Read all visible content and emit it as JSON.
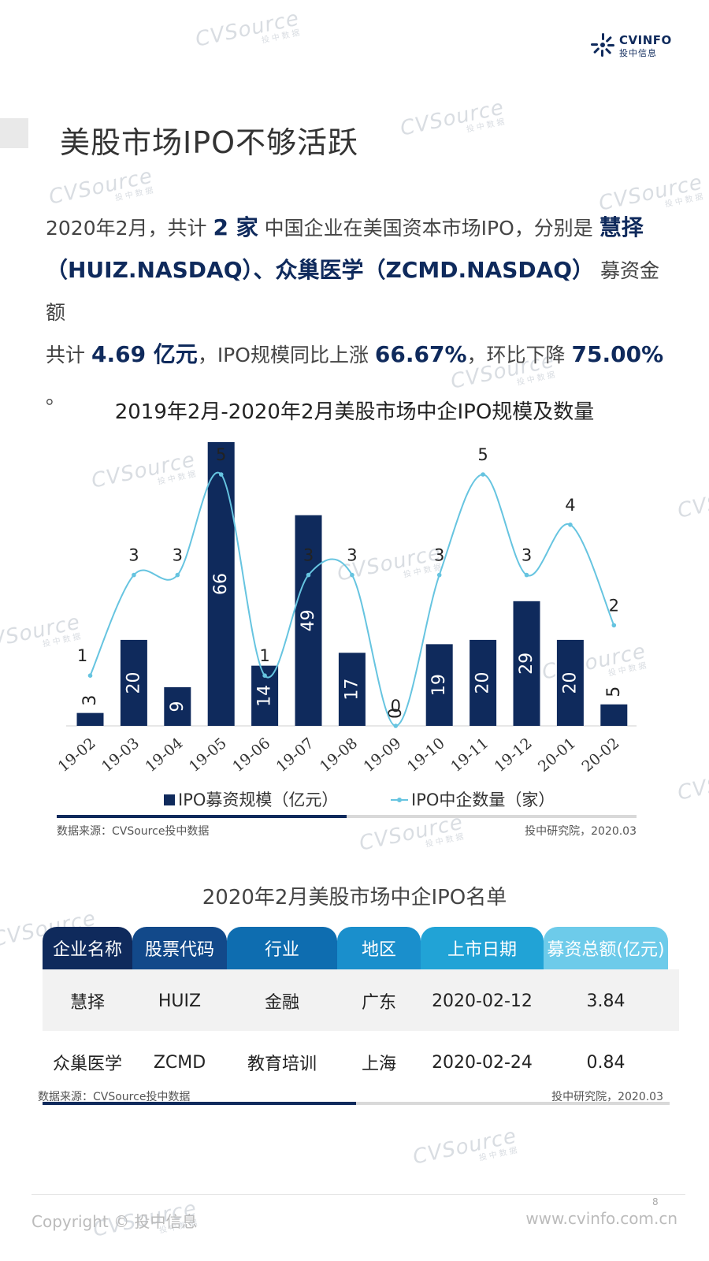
{
  "brand": {
    "name": "CVINFO",
    "sub": "投中信息"
  },
  "page_title": "美股市场IPO不够活跃",
  "summary": {
    "l1_a": "2020年2月，共计",
    "count": "2 家",
    "l1_b": "中国企业在美国资本市场IPO，分别是",
    "company1": "慧择",
    "l2_companies": "（HUIZ.NASDAQ）、众巢医学（ZCMD.NASDAQ）",
    "l2_b": "募资金额",
    "l3_a": "共计",
    "amount": "4.69 亿元",
    "l3_b": "，IPO规模同比上涨",
    "yoy": "66.67%",
    "l3_c": "，环比下降",
    "mom": "75.00%",
    "l3_d": "。"
  },
  "chart_data": {
    "type": "bar",
    "title": "2019年2月-2020年2月美股市场中企IPO规模及数量",
    "categories": [
      "19-02",
      "19-03",
      "19-04",
      "19-05",
      "19-06",
      "19-07",
      "19-08",
      "19-09",
      "19-10",
      "19-11",
      "19-12",
      "20-01",
      "20-02"
    ],
    "series": [
      {
        "name": "IPO募资规模（亿元）",
        "type": "bar",
        "color": "#0f2a5c",
        "values": [
          3,
          20,
          9,
          66,
          14,
          49,
          17,
          0,
          19,
          20,
          29,
          20,
          5
        ]
      },
      {
        "name": "IPO中企数量（家）",
        "type": "line",
        "color": "#66c4e0",
        "values": [
          1,
          3,
          3,
          5,
          1,
          3,
          3,
          0,
          3,
          5,
          3,
          4,
          2
        ]
      }
    ],
    "bar_ylim": [
      0,
      66
    ],
    "line_ylim": [
      0,
      5
    ],
    "legend_position": "bottom",
    "grid": false
  },
  "chart_source": {
    "left": "数据来源：CVSource投中数据",
    "right": "投中研究院，2020.03"
  },
  "table": {
    "title": "2020年2月美股市场中企IPO名单",
    "headers": [
      "企业名称",
      "股票代码",
      "行业",
      "地区",
      "上市日期",
      "募资总额(亿元)"
    ],
    "header_colors": [
      "#0f2a5c",
      "#12498a",
      "#0e6db0",
      "#1a8fcc",
      "#21a3d6",
      "#6dcbea"
    ],
    "rows": [
      [
        "慧择",
        "HUIZ",
        "金融",
        "广东",
        "2020-02-12",
        "3.84"
      ],
      [
        "众巢医学",
        "ZCMD",
        "教育培训",
        "上海",
        "2020-02-24",
        "0.84"
      ]
    ]
  },
  "table_source": {
    "left": "数据来源：CVSource投中数据",
    "right": "投中研究院，2020.03"
  },
  "footer": {
    "copyright": "Copyright © 投中信息",
    "website": "www.cvinfo.com.cn",
    "page": "8"
  },
  "watermark": {
    "text": "CVSource",
    "sub": "投中数据"
  }
}
